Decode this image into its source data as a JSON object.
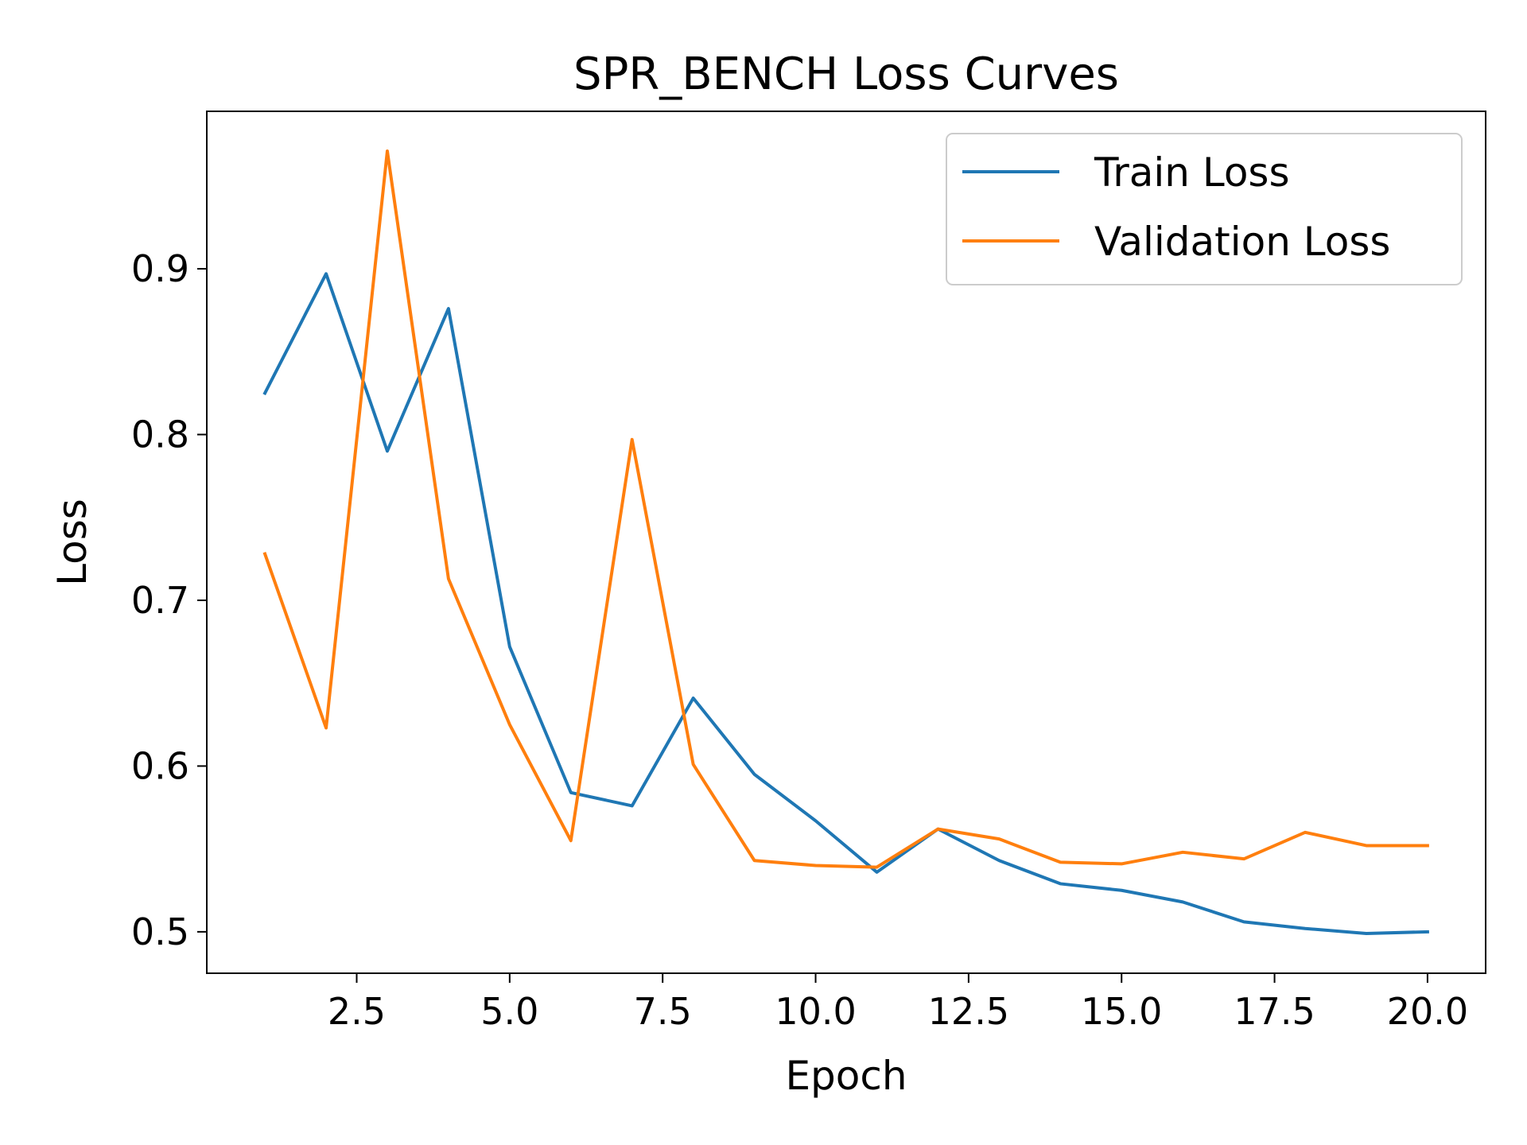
{
  "chart_data": {
    "type": "line",
    "title": "SPR_BENCH Loss Curves",
    "xlabel": "Epoch",
    "ylabel": "Loss",
    "xlim": [
      0.05,
      20.95
    ],
    "ylim": [
      0.475,
      0.995
    ],
    "xticks": [
      2.5,
      5.0,
      7.5,
      10.0,
      12.5,
      15.0,
      17.5,
      20.0
    ],
    "xtick_labels": [
      "2.5",
      "5.0",
      "7.5",
      "10.0",
      "12.5",
      "15.0",
      "17.5",
      "20.0"
    ],
    "yticks": [
      0.5,
      0.6,
      0.7,
      0.8,
      0.9
    ],
    "ytick_labels": [
      "0.5",
      "0.6",
      "0.7",
      "0.8",
      "0.9"
    ],
    "grid": false,
    "legend_position": "top-right",
    "x": [
      1,
      2,
      3,
      4,
      5,
      6,
      7,
      8,
      9,
      10,
      11,
      12,
      13,
      14,
      15,
      16,
      17,
      18,
      19,
      20
    ],
    "series": [
      {
        "name": "Train Loss",
        "color": "#1f77b4",
        "values": [
          0.825,
          0.897,
          0.79,
          0.876,
          0.672,
          0.584,
          0.576,
          0.641,
          0.595,
          0.567,
          0.536,
          0.562,
          0.543,
          0.529,
          0.525,
          0.518,
          0.506,
          0.502,
          0.499,
          0.5
        ]
      },
      {
        "name": "Validation Loss",
        "color": "#ff7f0e",
        "values": [
          0.728,
          0.623,
          0.971,
          0.713,
          0.625,
          0.555,
          0.797,
          0.601,
          0.543,
          0.54,
          0.539,
          0.562,
          0.556,
          0.542,
          0.541,
          0.548,
          0.544,
          0.56,
          0.552,
          0.552
        ]
      }
    ]
  }
}
